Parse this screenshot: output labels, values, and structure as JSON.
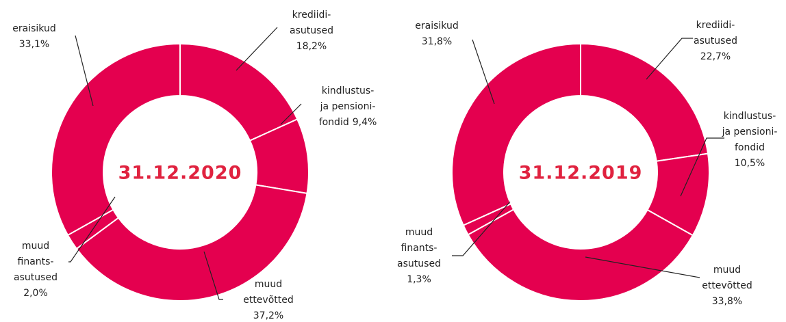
{
  "chart_data": [
    {
      "type": "donut",
      "title": "31.12.2020",
      "color": "#e4004f",
      "categories": [
        [
          "krediidi-",
          "asutused"
        ],
        [
          "kindlustus-",
          "ja pensioni-",
          "fondid"
        ],
        [
          "muud",
          "ettevõtted"
        ],
        [
          "muud",
          "finants-",
          "asutused"
        ],
        [
          "eraisikud"
        ]
      ],
      "values": [
        18.2,
        9.4,
        37.2,
        2.0,
        33.1
      ],
      "value_labels": [
        "18,2%",
        "9,4%",
        "37,2%",
        "2,0%",
        "33,1%"
      ]
    },
    {
      "type": "donut",
      "title": "31.12.2019",
      "color": "#e4004f",
      "categories": [
        [
          "krediidi-",
          "asutused"
        ],
        [
          "kindlustus-",
          "ja pensioni-",
          "fondid"
        ],
        [
          "muud",
          "ettevõtted"
        ],
        [
          "muud",
          "finants-",
          "asutused"
        ],
        [
          "eraisikud"
        ]
      ],
      "values": [
        22.7,
        10.5,
        33.8,
        1.3,
        31.8
      ],
      "value_labels": [
        "22,7%",
        "10,5%",
        "33,8%",
        "1,3%",
        "31,8%"
      ]
    }
  ]
}
